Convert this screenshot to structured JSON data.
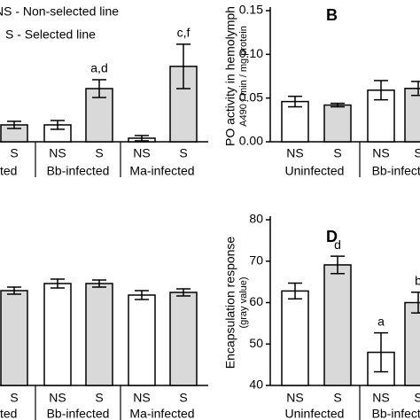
{
  "legend_lines": [
    "NS - Non-selected line",
    "S - Selected line"
  ],
  "chart_data": [
    {
      "type": "bar",
      "panel": "A",
      "categories": [
        "S",
        "NS",
        "S",
        "NS",
        "S"
      ],
      "groups": [
        "Uninfected",
        "Bb-infected",
        "Ma-infected"
      ],
      "values": [
        12.7,
        12.7,
        40,
        2.7,
        56.7
      ],
      "errors": [
        2.7,
        3.3,
        6.7,
        2,
        16.7
      ],
      "colors": [
        "#d9d9d9",
        "#ffffff",
        "#d9d9d9",
        "#ffffff",
        "#d9d9d9"
      ],
      "annotations": [
        null,
        null,
        "a,d",
        null,
        "c,f"
      ],
      "ylim": [
        0,
        100
      ]
    },
    {
      "type": "bar",
      "panel": "B",
      "ylabel": "PO activity in hemolymph",
      "ylabel2": "A490 / min / mg protein",
      "categories": [
        "NS",
        "S",
        "NS",
        "S"
      ],
      "groups": [
        "Uninfected",
        "Bb-infected"
      ],
      "values": [
        0.046,
        0.042,
        0.059,
        0.061
      ],
      "errors": [
        0.006,
        0.002,
        0.011,
        0.008
      ],
      "colors": [
        "#ffffff",
        "#d9d9d9",
        "#ffffff",
        "#d9d9d9"
      ],
      "annotations": [
        null,
        null,
        null,
        null
      ],
      "ylim": [
        0,
        0.15
      ],
      "yticks": [
        {
          "value": 0,
          "label": "0.00"
        },
        {
          "value": 0.05,
          "label": "0.05"
        },
        {
          "value": 0.1,
          "label": "0.10"
        },
        {
          "value": 0.15,
          "label": "0.15"
        }
      ]
    },
    {
      "type": "bar",
      "panel": "C",
      "categories": [
        "S",
        "NS",
        "S",
        "NS",
        "S"
      ],
      "groups": [
        "Uninfected",
        "Bb-infected",
        "Ma-infected"
      ],
      "values": [
        85.6,
        92,
        92,
        81.6,
        84
      ],
      "errors": [
        3.2,
        4,
        3.2,
        4,
        3.2
      ],
      "colors": [
        "#d9d9d9",
        "#ffffff",
        "#d9d9d9",
        "#ffffff",
        "#d9d9d9"
      ],
      "annotations": [
        null,
        null,
        null,
        null,
        null
      ],
      "ylim": [
        0,
        100
      ]
    },
    {
      "type": "bar",
      "panel": "D",
      "ylabel": "Encapsulation response",
      "ylabel2": "(gray value)",
      "categories": [
        "NS",
        "S",
        "NS",
        "S"
      ],
      "groups": [
        "Uninfected",
        "Bb-infected"
      ],
      "values": [
        62.8,
        69.1,
        48,
        60
      ],
      "errors": [
        1.9,
        2.1,
        4.7,
        2.5
      ],
      "colors": [
        "#ffffff",
        "#d9d9d9",
        "#ffffff",
        "#d9d9d9"
      ],
      "annotations": [
        null,
        "d",
        "a",
        "b"
      ],
      "ylim": [
        40,
        80
      ],
      "yticks": [
        40,
        50,
        60,
        70,
        80
      ]
    }
  ]
}
